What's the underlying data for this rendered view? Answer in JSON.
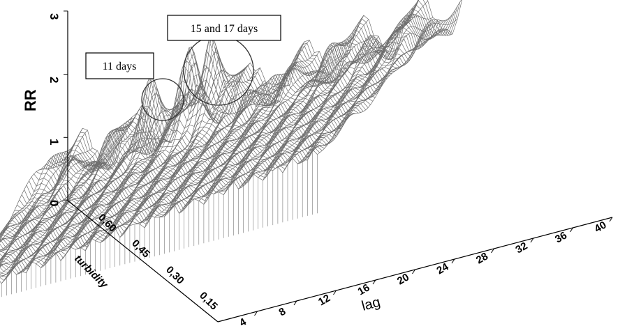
{
  "chart_data": {
    "type": "surface",
    "title": "",
    "xlabel": "lag",
    "ylabel": "turbidity",
    "zlabel": "RR",
    "x_ticks": [
      "4",
      "8",
      "12",
      "16",
      "20",
      "24",
      "28",
      "32",
      "36",
      "40"
    ],
    "y_ticks": [
      "0,15",
      "0,30",
      "0,45",
      "0,60"
    ],
    "z_ticks": [
      "0",
      "1",
      "2",
      "3"
    ],
    "xlim": [
      0,
      40
    ],
    "ylim": [
      0.1,
      0.7
    ],
    "zlim": [
      0,
      3
    ],
    "peaks": [
      {
        "lag": 11,
        "turbidity": 0.6,
        "rr": 1.6
      },
      {
        "lag": 15,
        "turbidity": 0.6,
        "rr": 1.95
      },
      {
        "lag": 17,
        "turbidity": 0.6,
        "rr": 2.1
      }
    ],
    "annotations": [
      {
        "text": "11 days",
        "lag": 11
      },
      {
        "text": "15 and 17 days",
        "lag": 16
      }
    ]
  }
}
